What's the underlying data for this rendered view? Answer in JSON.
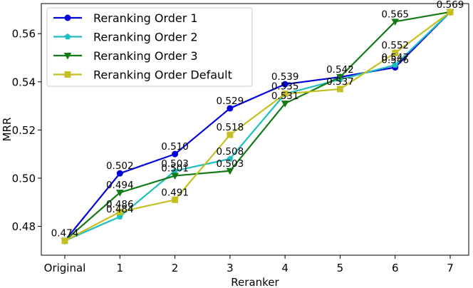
{
  "chart_data": {
    "type": "line",
    "xlabel": "Reranker",
    "ylabel": "MRR",
    "categories": [
      "Original",
      "1",
      "2",
      "3",
      "4",
      "5",
      "6",
      "7"
    ],
    "ylim": [
      0.468,
      0.5725
    ],
    "yticks": [
      "0.48",
      "0.50",
      "0.52",
      "0.54",
      "0.56"
    ],
    "ytick_values": [
      0.48,
      0.5,
      0.52,
      0.54,
      0.56
    ],
    "grid": false,
    "legend_position": "top-left",
    "series": [
      {
        "name": "Reranking Order 1",
        "color": "#0000dd",
        "marker": "circle",
        "values": [
          0.474,
          0.502,
          0.51,
          0.529,
          0.539,
          0.542,
          0.546,
          0.569
        ],
        "labels": [
          "0.474",
          "0.502",
          "0.510",
          "0.529",
          "0.539",
          "0.542",
          "0.546",
          "0.569"
        ],
        "label_show": [
          true,
          true,
          true,
          true,
          true,
          true,
          true,
          true
        ]
      },
      {
        "name": "Reranking Order 2",
        "color": "#1fbfbf",
        "marker": "pentagon",
        "values": [
          0.474,
          0.484,
          0.503,
          0.508,
          0.535,
          0.541,
          0.547,
          0.569
        ],
        "labels": [
          "0.474",
          "0.484",
          "0.503",
          "0.508",
          "0.535",
          "0.541",
          "0.547",
          "0.569"
        ],
        "label_show": [
          false,
          true,
          true,
          true,
          true,
          false,
          true,
          false
        ]
      },
      {
        "name": "Reranking Order 3",
        "color": "#157a15",
        "marker": "triangle-down",
        "values": [
          0.474,
          0.494,
          0.501,
          0.503,
          0.531,
          0.542,
          0.565,
          0.569
        ],
        "labels": [
          "0.474",
          "0.494",
          "0.501",
          "0.503",
          "0.531",
          "0.542",
          "0.565",
          "0.569"
        ],
        "label_show": [
          false,
          true,
          true,
          true,
          true,
          false,
          true,
          false
        ]
      },
      {
        "name": "Reranking Order Default",
        "color": "#c4c023",
        "marker": "square",
        "values": [
          0.474,
          0.486,
          0.491,
          0.518,
          0.535,
          0.537,
          0.552,
          0.569
        ],
        "labels": [
          "0.474",
          "0.486",
          "0.491",
          "0.518",
          "0.535",
          "0.537",
          "0.552",
          "0.569"
        ],
        "label_show": [
          false,
          true,
          true,
          true,
          false,
          true,
          true,
          false
        ]
      }
    ]
  }
}
